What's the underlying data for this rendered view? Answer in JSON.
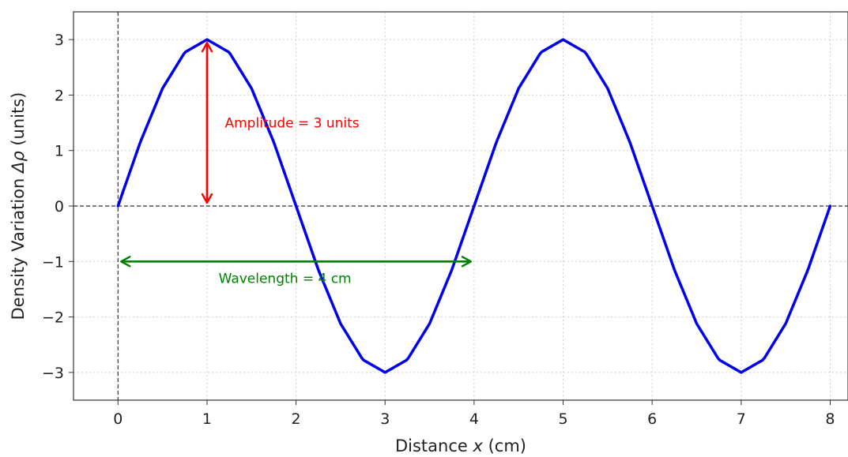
{
  "chart_data": {
    "type": "line",
    "title": "",
    "xlabel": {
      "prefix": "Distance ",
      "var": "x",
      "suffix": " (cm)"
    },
    "ylabel": {
      "prefix": "Density Variation ",
      "var": "Δρ",
      "suffix": " (units)"
    },
    "xlim": [
      -0.5,
      8.2
    ],
    "ylim": [
      -3.5,
      3.5
    ],
    "xticks": [
      0,
      1,
      2,
      3,
      4,
      5,
      6,
      7,
      8
    ],
    "yticks": [
      -3,
      -2,
      -1,
      0,
      1,
      2,
      3
    ],
    "xtick_labels": [
      "0",
      "1",
      "2",
      "3",
      "4",
      "5",
      "6",
      "7",
      "8"
    ],
    "ytick_labels": [
      "−3",
      "−2",
      "−1",
      "0",
      "1",
      "2",
      "3"
    ],
    "grid": true,
    "series": [
      {
        "color": "#0000ee",
        "x": [
          0,
          0.25,
          0.5,
          0.75,
          1,
          1.25,
          1.5,
          1.75,
          2,
          2.25,
          2.5,
          2.75,
          3,
          3.25,
          3.5,
          3.75,
          4,
          4.25,
          4.5,
          4.75,
          5,
          5.25,
          5.5,
          5.75,
          6,
          6.25,
          6.5,
          6.75,
          7,
          7.25,
          7.5,
          7.75,
          8
        ],
        "y": [
          0,
          1.15,
          2.12,
          2.77,
          3,
          2.77,
          2.12,
          1.15,
          0,
          -1.15,
          -2.12,
          -2.77,
          -3,
          -2.77,
          -2.12,
          -1.15,
          0,
          1.15,
          2.12,
          2.77,
          3,
          2.77,
          2.12,
          1.15,
          0,
          -1.15,
          -2.12,
          -2.77,
          -3,
          -2.77,
          -2.12,
          -1.15,
          0
        ]
      }
    ],
    "reference_lines": {
      "horizontal_y": 0,
      "vertical_x": 0,
      "color": "#333333"
    },
    "annotations": [
      {
        "text": "Amplitude = 3 units",
        "color": "#ff0000",
        "arrow_from": [
          1,
          0
        ],
        "arrow_to": [
          1,
          3
        ],
        "text_at": [
          1.2,
          1.5
        ]
      },
      {
        "text": "Wavelength = 4 cm",
        "color": "#008000",
        "arrow_from": [
          0,
          -1
        ],
        "arrow_to": [
          4,
          -1
        ],
        "text_at": [
          1.13,
          -1.3
        ]
      }
    ]
  }
}
